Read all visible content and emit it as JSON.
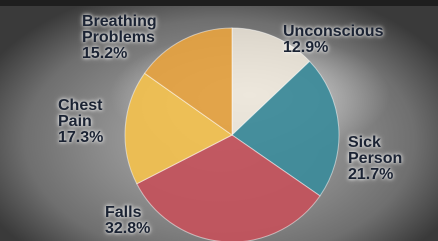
{
  "chart_data": {
    "type": "pie",
    "categories": [
      "Unconscious",
      "Sick Person",
      "Falls",
      "Chest Pain",
      "Breathing Problems"
    ],
    "values": [
      12.9,
      21.7,
      32.8,
      17.3,
      15.2
    ],
    "value_labels": [
      "12.9%",
      "21.7%",
      "32.8%",
      "17.3%",
      "15.2%"
    ],
    "colors": [
      "#efe7da",
      "#3e8b9a",
      "#c2535d",
      "#efbf50",
      "#e3a142"
    ]
  }
}
